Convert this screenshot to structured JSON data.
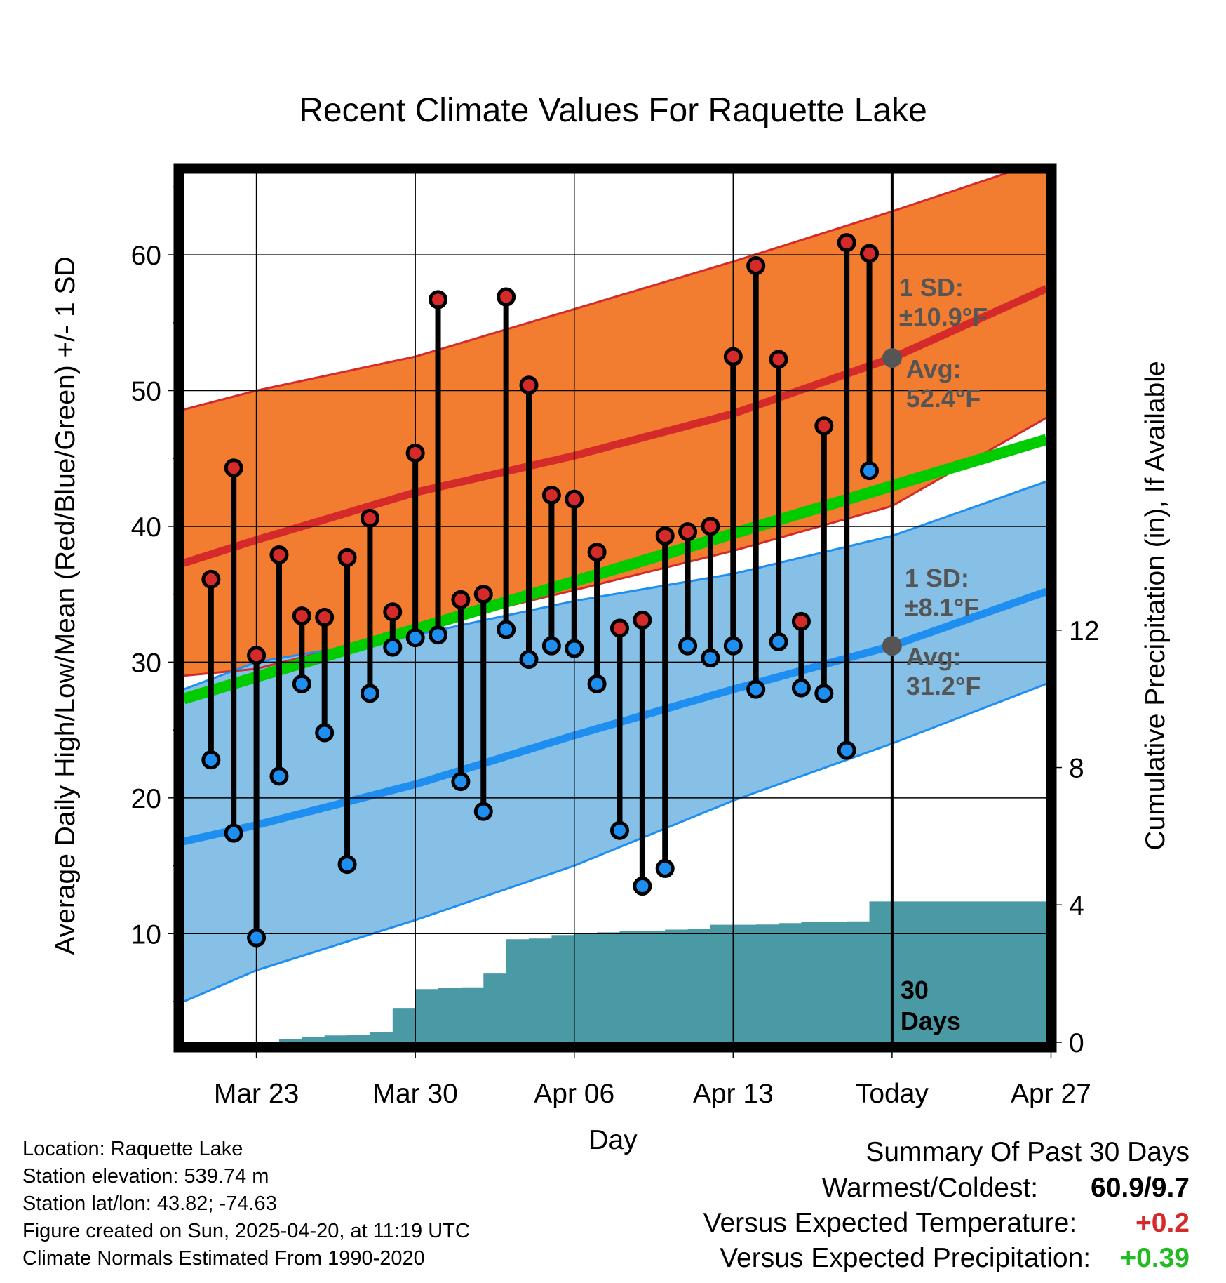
{
  "chart_data": {
    "type": "line",
    "title": "Recent Climate Values For Raquette Lake",
    "xlabel": "Day",
    "ylabel": "Average Daily High/Low/Mean (Red/Blue/Green) +/- 1 SD",
    "y2label": "Cumulative Precipitation (in), If Available",
    "xlim": [
      -3.2,
      34.8
    ],
    "ylim": [
      2,
      66
    ],
    "y2lim": [
      0,
      25.3
    ],
    "x_ticks": [
      {
        "x": 0,
        "label": "Mar 23"
      },
      {
        "x": 7,
        "label": "Mar 30"
      },
      {
        "x": 14,
        "label": "Apr 06"
      },
      {
        "x": 21,
        "label": "Apr 13"
      },
      {
        "x": 28,
        "label": "Today"
      },
      {
        "x": 35,
        "label": "Apr 27"
      }
    ],
    "y_ticks": [
      10,
      20,
      30,
      40,
      50,
      60
    ],
    "y2_ticks": [
      0,
      4,
      8,
      12
    ],
    "grid": true,
    "today_x": 28,
    "today_label": "30\nDays",
    "normal_high": {
      "name": "Average Daily High",
      "color": "#d42a2a",
      "x": [
        -3.2,
        0,
        7,
        14,
        21,
        28,
        34.8
      ],
      "mean": [
        37.3,
        39.0,
        42.5,
        45.2,
        48.3,
        52.4,
        57.5
      ],
      "upper": [
        48.6,
        50.0,
        52.5,
        56.0,
        59.5,
        63.2,
        67.0
      ],
      "lower": [
        29.0,
        29.5,
        32.5,
        35.3,
        38.2,
        41.5,
        48.0
      ]
    },
    "normal_low": {
      "name": "Average Daily Low",
      "color": "#1e8ff0",
      "x": [
        -3.2,
        0,
        7,
        14,
        21,
        28,
        34.8
      ],
      "mean": [
        16.8,
        18.0,
        21.0,
        24.6,
        28.0,
        31.2,
        35.2
      ],
      "upper": [
        28.0,
        30.0,
        32.0,
        34.5,
        36.5,
        39.3,
        43.3
      ],
      "lower": [
        5.0,
        7.3,
        11.0,
        15.0,
        19.8,
        24.0,
        28.4
      ]
    },
    "normal_mean": {
      "name": "Average Daily Mean",
      "color": "#00cc00",
      "x": [
        -3.2,
        34.8
      ],
      "values": [
        27.3,
        46.4
      ]
    },
    "annotations": {
      "high_sd": "1 SD:\n±10.9°F",
      "high_avg": "Avg:\n52.4°F",
      "low_sd": "1 SD:\n±8.1°F",
      "low_avg": "Avg:\n31.2°F"
    },
    "daily": {
      "x": [
        -2,
        -1,
        0,
        1,
        2,
        3,
        4,
        5,
        6,
        7,
        8,
        9,
        10,
        11,
        12,
        13,
        14,
        15,
        16,
        17,
        18,
        19,
        20,
        21,
        22,
        23,
        24,
        25,
        26,
        27
      ],
      "high": [
        36.1,
        44.3,
        30.5,
        37.9,
        33.4,
        33.3,
        37.7,
        40.6,
        33.7,
        45.4,
        56.7,
        34.6,
        35.0,
        56.9,
        50.4,
        42.3,
        42.0,
        38.1,
        32.5,
        33.1,
        39.3,
        39.6,
        40.0,
        52.5,
        59.2,
        52.3,
        33.0,
        47.4,
        60.9,
        60.1
      ],
      "low": [
        22.8,
        17.4,
        9.7,
        21.6,
        28.4,
        24.8,
        15.1,
        27.7,
        31.1,
        31.8,
        32.0,
        21.2,
        19.0,
        32.4,
        30.2,
        31.2,
        31.0,
        28.4,
        17.6,
        13.5,
        14.8,
        31.2,
        30.3,
        31.2,
        28.0,
        31.5,
        28.1,
        27.7,
        23.5,
        44.1
      ]
    },
    "precip": {
      "name": "Cumulative Precipitation",
      "color": "#4a9aa5",
      "x": [
        -2,
        -1,
        0,
        1,
        2,
        3,
        4,
        5,
        6,
        7,
        8,
        9,
        10,
        11,
        12,
        13,
        14,
        15,
        16,
        17,
        18,
        19,
        20,
        21,
        22,
        23,
        24,
        25,
        26,
        27,
        28,
        34.8
      ],
      "values": [
        0,
        0,
        0,
        0.1,
        0.15,
        0.2,
        0.22,
        0.3,
        1.0,
        1.55,
        1.58,
        1.6,
        2.0,
        3.0,
        3.02,
        3.12,
        3.15,
        3.2,
        3.25,
        3.25,
        3.28,
        3.3,
        3.42,
        3.42,
        3.43,
        3.47,
        3.5,
        3.5,
        3.52,
        4.1,
        4.1,
        4.1
      ]
    }
  },
  "footer": {
    "location": "Location: Raquette Lake",
    "elevation": "Station elevation: 539.74 m",
    "latlon": "Station lat/lon: 43.82; -74.63",
    "created": "Figure created on Sun, 2025-04-20, at 11:19 UTC",
    "normals": "Climate Normals Estimated From 1990-2020"
  },
  "summary": {
    "title": "Summary Of Past 30 Days",
    "warmest_label": "Warmest/Coldest:",
    "warmest_value": "60.9/9.7",
    "temp_label": "Versus Expected Temperature:",
    "temp_value": "+0.2",
    "temp_color": "#d42a2a",
    "precip_label": "Versus Expected Precipitation:",
    "precip_value": "+0.39",
    "precip_color": "#22bb22"
  }
}
